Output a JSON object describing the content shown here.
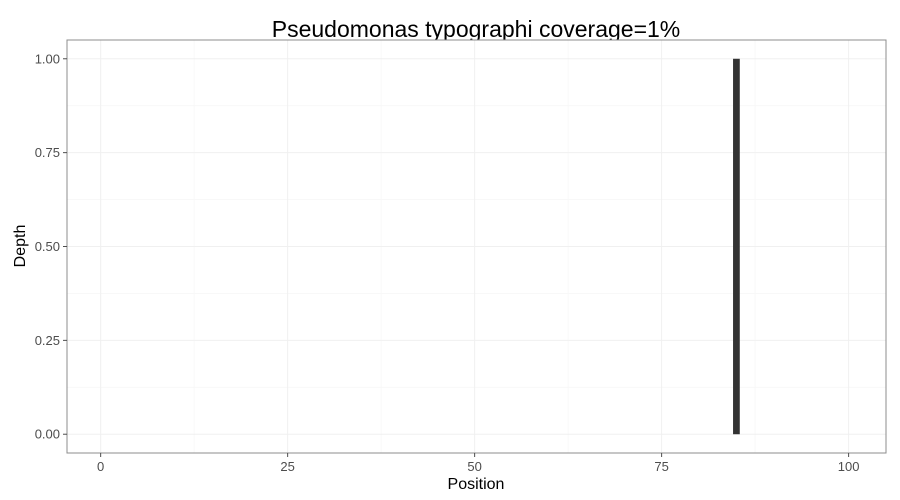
{
  "chart_data": {
    "type": "bar",
    "title": "Pseudomonas typographi coverage=1%",
    "xlabel": "Position",
    "ylabel": "Depth",
    "xlim": [
      -4.5,
      105
    ],
    "ylim": [
      -0.05,
      1.05
    ],
    "x_ticks": [
      0,
      25,
      50,
      75,
      100
    ],
    "x_tick_labels": [
      "0",
      "25",
      "50",
      "75",
      "100"
    ],
    "y_ticks": [
      0,
      0.25,
      0.5,
      0.75,
      1
    ],
    "y_tick_labels": [
      "0.00",
      "0.25",
      "0.50",
      "0.75",
      "1.00"
    ],
    "grid": true,
    "legend": "none",
    "bar_color": "#333333",
    "series": [
      {
        "x": [
          85
        ],
        "values": [
          1
        ]
      }
    ]
  }
}
